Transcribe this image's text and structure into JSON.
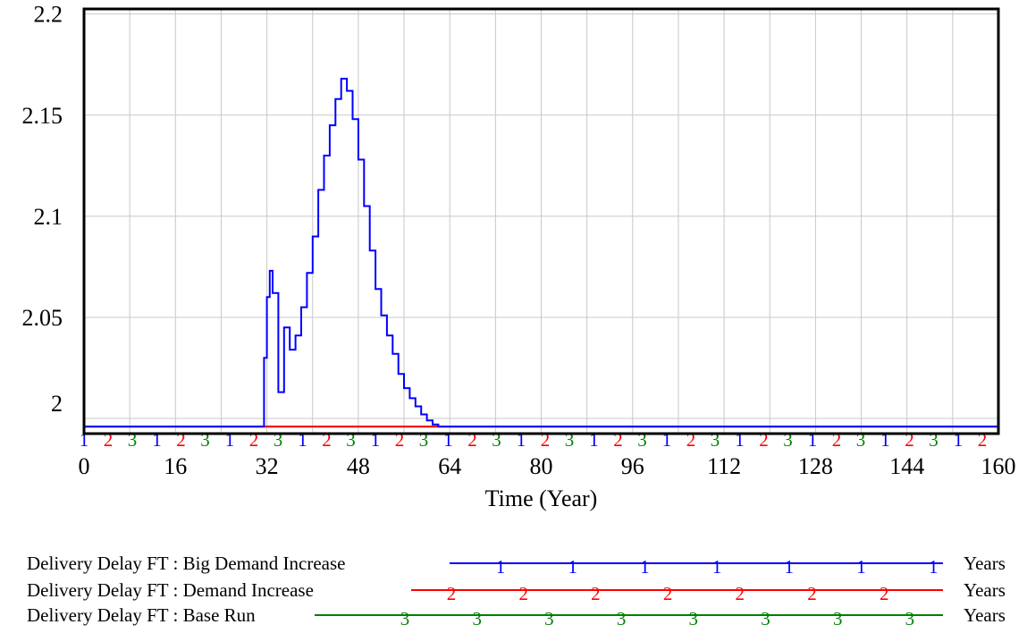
{
  "chart_data": {
    "type": "line",
    "xlabel": "Time (Year)",
    "ylabel": "",
    "xlim": [
      0,
      160
    ],
    "ylim": [
      1.9925,
      2.2025
    ],
    "x_ticks": [
      "0",
      "16",
      "32",
      "48",
      "64",
      "80",
      "96",
      "112",
      "128",
      "144",
      "160"
    ],
    "y_ticks": [
      {
        "value": 2.2,
        "label": "2.2"
      },
      {
        "value": 2.15,
        "label": "2.15"
      },
      {
        "value": 2.1,
        "label": "2.1"
      },
      {
        "value": 2.05,
        "label": "2.05"
      },
      {
        "value": 2.0,
        "label": "2"
      }
    ],
    "grid": true,
    "legend_position": "bottom",
    "series": [
      {
        "name": "Delivery Delay FT : Big Demand Increase",
        "marker": "1",
        "unit": "Years",
        "color": "#0000ff",
        "x": [
          0,
          31,
          31.5,
          32,
          32.5,
          33,
          34,
          35,
          36,
          37,
          38,
          39,
          40,
          41,
          42,
          43,
          44,
          45,
          46,
          47,
          48,
          49,
          50,
          51,
          52,
          53,
          54,
          55,
          56,
          57,
          58,
          59,
          60,
          61,
          62,
          63,
          64,
          160
        ],
        "values": [
          1.996,
          1.996,
          2.03,
          2.06,
          2.073,
          2.062,
          2.013,
          2.045,
          2.034,
          2.041,
          2.055,
          2.072,
          2.09,
          2.113,
          2.13,
          2.145,
          2.158,
          2.168,
          2.162,
          2.148,
          2.128,
          2.105,
          2.083,
          2.064,
          2.051,
          2.041,
          2.032,
          2.022,
          2.015,
          2.01,
          2.006,
          2.002,
          1.999,
          1.997,
          1.996,
          1.996,
          1.996,
          1.996
        ]
      },
      {
        "name": "Delivery Delay FT : Demand Increase",
        "marker": "2",
        "unit": "Years",
        "color": "#ff0000",
        "x": [
          0,
          160
        ],
        "values": [
          1.996,
          1.996
        ]
      },
      {
        "name": "Delivery Delay FT : Base Run",
        "marker": "3",
        "unit": "Years",
        "color": "#008000",
        "x": [
          0,
          160
        ],
        "values": [
          1.996,
          1.996
        ]
      }
    ]
  }
}
